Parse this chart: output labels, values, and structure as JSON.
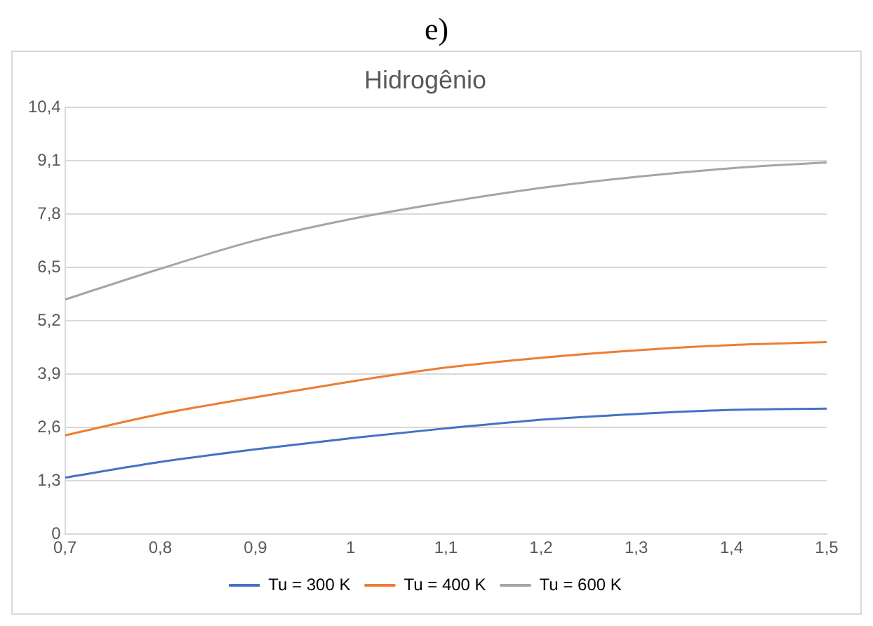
{
  "chart_data": {
    "type": "line",
    "title": "Hidrogênio",
    "annotations": [
      "e)"
    ],
    "x": [
      0.7,
      0.8,
      0.9,
      1.0,
      1.1,
      1.2,
      1.3,
      1.4,
      1.5
    ],
    "series": [
      {
        "name": "Tu = 300 K",
        "color": "#4472c4",
        "values": [
          1.38,
          1.76,
          2.07,
          2.34,
          2.58,
          2.79,
          2.93,
          3.03,
          3.06
        ]
      },
      {
        "name": "Tu = 400 K",
        "color": "#ed7d31",
        "values": [
          2.41,
          2.93,
          3.34,
          3.72,
          4.06,
          4.3,
          4.48,
          4.61,
          4.68
        ]
      },
      {
        "name": "Tu = 600 K",
        "color": "#a5a5a5",
        "values": [
          5.72,
          6.47,
          7.16,
          7.68,
          8.09,
          8.44,
          8.71,
          8.92,
          9.06
        ]
      }
    ],
    "xlim": [
      0.7,
      1.5
    ],
    "xticks": [
      {
        "value": 0.7,
        "label": "0,7"
      },
      {
        "value": 0.8,
        "label": "0,8"
      },
      {
        "value": 0.9,
        "label": "0,9"
      },
      {
        "value": 1,
        "label": "1"
      },
      {
        "value": 1.1,
        "label": "1,1"
      },
      {
        "value": 1.2,
        "label": "1,2"
      },
      {
        "value": 1.3,
        "label": "1,3"
      },
      {
        "value": 1.4,
        "label": "1,4"
      },
      {
        "value": 1.5,
        "label": "1,5"
      }
    ],
    "ylim": [
      0,
      10.4
    ],
    "yticks": [
      0,
      {
        "value": 1.3,
        "label": "1,3"
      },
      {
        "value": 2.6,
        "label": "2,6"
      },
      {
        "value": 3.9,
        "label": "3,9"
      },
      {
        "value": 5.2,
        "label": "5,2"
      },
      {
        "value": 6.5,
        "label": "6,5"
      },
      {
        "value": 7.8,
        "label": "7,8"
      },
      {
        "value": 9.1,
        "label": "9,1"
      },
      {
        "value": 10.4,
        "label": "10,4"
      }
    ],
    "grid": "y",
    "legend": "bottom",
    "marker": "none",
    "line_style": "solid"
  }
}
